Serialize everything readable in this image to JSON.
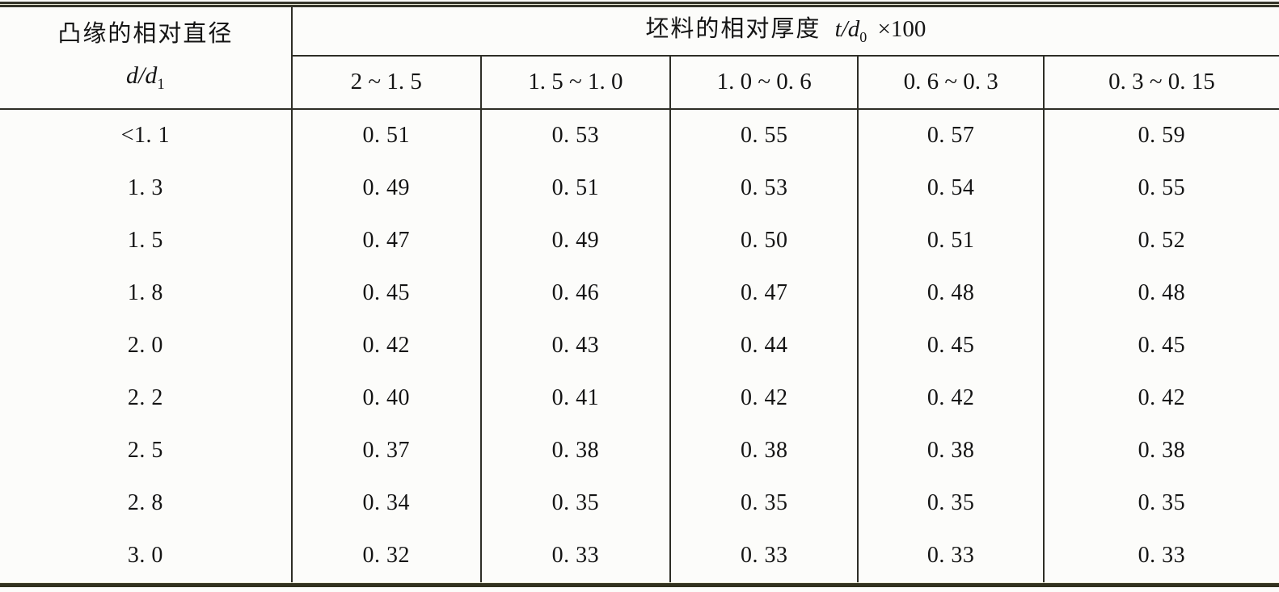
{
  "table": {
    "header": {
      "col1": {
        "title": "凸缘的相对直径",
        "formula_base": "d/d",
        "formula_sub": "1"
      },
      "span_header": {
        "title": "坯料的相对厚度",
        "formula_base": "t/d",
        "formula_sub": "0",
        "suffix": "×100"
      },
      "thickness_cols": [
        "2 ~ 1. 5",
        "1. 5 ~ 1. 0",
        "1. 0 ~ 0. 6",
        "0. 6 ~ 0. 3",
        "0. 3 ~ 0. 15"
      ]
    },
    "rows": [
      {
        "label": "<1. 1",
        "values": [
          "0. 51",
          "0. 53",
          "0. 55",
          "0. 57",
          "0. 59"
        ]
      },
      {
        "label": "1. 3",
        "values": [
          "0. 49",
          "0. 51",
          "0. 53",
          "0. 54",
          "0. 55"
        ]
      },
      {
        "label": "1. 5",
        "values": [
          "0. 47",
          "0. 49",
          "0. 50",
          "0. 51",
          "0. 52"
        ]
      },
      {
        "label": "1. 8",
        "values": [
          "0. 45",
          "0. 46",
          "0. 47",
          "0. 48",
          "0. 48"
        ]
      },
      {
        "label": "2. 0",
        "values": [
          "0. 42",
          "0. 43",
          "0. 44",
          "0. 45",
          "0. 45"
        ]
      },
      {
        "label": "2. 2",
        "values": [
          "0. 40",
          "0. 41",
          "0. 42",
          "0. 42",
          "0. 42"
        ]
      },
      {
        "label": "2. 5",
        "values": [
          "0. 37",
          "0. 38",
          "0. 38",
          "0. 38",
          "0. 38"
        ]
      },
      {
        "label": "2. 8",
        "values": [
          "0. 34",
          "0. 35",
          "0. 35",
          "0. 35",
          "0. 35"
        ]
      },
      {
        "label": "3. 0",
        "values": [
          "0. 32",
          "0. 33",
          "0. 33",
          "0. 33",
          "0. 33"
        ]
      }
    ],
    "colors": {
      "thick_rule_dark": "#32321f",
      "thick_rule_light": "#e9e9d6",
      "thin_line": "#2e2e26",
      "text": "#141414",
      "background": "#fcfcfa"
    }
  }
}
